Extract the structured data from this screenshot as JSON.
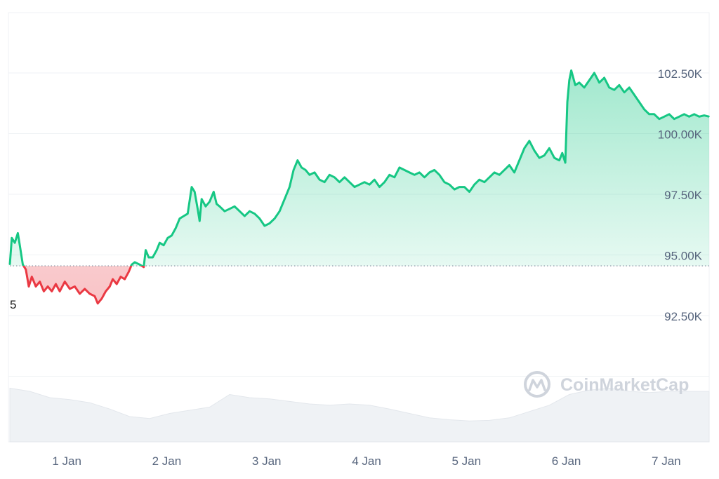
{
  "watermark": "CoinMarketCap",
  "colors": {
    "up": "#16c784",
    "down": "#ea3943",
    "up_fill": "#16c784",
    "down_fill": "#ea3943",
    "grid": "#eff2f5",
    "volume": "#eff2f5",
    "axis_text": "#58667e",
    "baseline": "#808a9d"
  },
  "chart_data": {
    "type": "area",
    "reference_label": "5",
    "baseline": 94.55,
    "ylim": [
      90.0,
      105.0
    ],
    "y_ticks": [
      {
        "value": 92.5,
        "label": "92.50K"
      },
      {
        "value": 95.0,
        "label": "95.00K"
      },
      {
        "value": 97.5,
        "label": "97.50K"
      },
      {
        "value": 100.0,
        "label": "100.00K"
      },
      {
        "value": 102.5,
        "label": "102.50K"
      }
    ],
    "x_ticks": [
      {
        "t": 0.5,
        "label": "1 Jan"
      },
      {
        "t": 1.5,
        "label": "2 Jan"
      },
      {
        "t": 2.5,
        "label": "3 Jan"
      },
      {
        "t": 3.5,
        "label": "4 Jan"
      },
      {
        "t": 4.5,
        "label": "5 Jan"
      },
      {
        "t": 5.5,
        "label": "6 Jan"
      },
      {
        "t": 6.5,
        "label": "7 Jan"
      }
    ],
    "x_range": [
      0,
      7.0
    ],
    "series": [
      {
        "values": [
          [
            0.0,
            94.6
          ],
          [
            0.02,
            95.7
          ],
          [
            0.05,
            95.5
          ],
          [
            0.08,
            95.9
          ],
          [
            0.1,
            95.4
          ],
          [
            0.13,
            94.6
          ],
          [
            0.16,
            94.4
          ],
          [
            0.19,
            93.7
          ],
          [
            0.22,
            94.1
          ],
          [
            0.26,
            93.7
          ],
          [
            0.3,
            93.9
          ],
          [
            0.34,
            93.5
          ],
          [
            0.38,
            93.7
          ],
          [
            0.42,
            93.5
          ],
          [
            0.46,
            93.8
          ],
          [
            0.5,
            93.5
          ],
          [
            0.55,
            93.9
          ],
          [
            0.6,
            93.6
          ],
          [
            0.65,
            93.7
          ],
          [
            0.7,
            93.4
          ],
          [
            0.75,
            93.6
          ],
          [
            0.8,
            93.4
          ],
          [
            0.85,
            93.3
          ],
          [
            0.88,
            93.0
          ],
          [
            0.92,
            93.2
          ],
          [
            0.96,
            93.5
          ],
          [
            1.0,
            93.7
          ],
          [
            1.03,
            94.0
          ],
          [
            1.07,
            93.8
          ],
          [
            1.11,
            94.1
          ],
          [
            1.15,
            94.0
          ],
          [
            1.19,
            94.3
          ],
          [
            1.22,
            94.6
          ],
          [
            1.25,
            94.7
          ],
          [
            1.3,
            94.6
          ],
          [
            1.34,
            94.5
          ],
          [
            1.36,
            95.2
          ],
          [
            1.39,
            94.9
          ],
          [
            1.43,
            94.9
          ],
          [
            1.47,
            95.2
          ],
          [
            1.5,
            95.5
          ],
          [
            1.54,
            95.4
          ],
          [
            1.58,
            95.7
          ],
          [
            1.62,
            95.8
          ],
          [
            1.66,
            96.1
          ],
          [
            1.7,
            96.5
          ],
          [
            1.74,
            96.6
          ],
          [
            1.78,
            96.7
          ],
          [
            1.82,
            97.8
          ],
          [
            1.85,
            97.6
          ],
          [
            1.88,
            96.9
          ],
          [
            1.9,
            96.4
          ],
          [
            1.92,
            97.3
          ],
          [
            1.96,
            97.0
          ],
          [
            2.0,
            97.2
          ],
          [
            2.04,
            97.6
          ],
          [
            2.07,
            97.1
          ],
          [
            2.1,
            97.0
          ],
          [
            2.15,
            96.8
          ],
          [
            2.2,
            96.9
          ],
          [
            2.25,
            97.0
          ],
          [
            2.3,
            96.8
          ],
          [
            2.35,
            96.6
          ],
          [
            2.4,
            96.8
          ],
          [
            2.45,
            96.7
          ],
          [
            2.5,
            96.5
          ],
          [
            2.55,
            96.2
          ],
          [
            2.6,
            96.3
          ],
          [
            2.65,
            96.5
          ],
          [
            2.7,
            96.8
          ],
          [
            2.75,
            97.3
          ],
          [
            2.8,
            97.8
          ],
          [
            2.84,
            98.5
          ],
          [
            2.88,
            98.9
          ],
          [
            2.92,
            98.6
          ],
          [
            2.96,
            98.5
          ],
          [
            3.0,
            98.3
          ],
          [
            3.05,
            98.4
          ],
          [
            3.1,
            98.1
          ],
          [
            3.15,
            98.0
          ],
          [
            3.2,
            98.3
          ],
          [
            3.25,
            98.2
          ],
          [
            3.3,
            98.0
          ],
          [
            3.35,
            98.2
          ],
          [
            3.4,
            98.0
          ],
          [
            3.45,
            97.8
          ],
          [
            3.5,
            97.9
          ],
          [
            3.55,
            98.0
          ],
          [
            3.6,
            97.9
          ],
          [
            3.65,
            98.1
          ],
          [
            3.7,
            97.8
          ],
          [
            3.75,
            98.0
          ],
          [
            3.8,
            98.3
          ],
          [
            3.85,
            98.2
          ],
          [
            3.9,
            98.6
          ],
          [
            3.95,
            98.5
          ],
          [
            4.0,
            98.4
          ],
          [
            4.05,
            98.3
          ],
          [
            4.1,
            98.4
          ],
          [
            4.15,
            98.2
          ],
          [
            4.2,
            98.4
          ],
          [
            4.25,
            98.5
          ],
          [
            4.3,
            98.3
          ],
          [
            4.35,
            98.0
          ],
          [
            4.4,
            97.9
          ],
          [
            4.45,
            97.7
          ],
          [
            4.5,
            97.8
          ],
          [
            4.55,
            97.8
          ],
          [
            4.6,
            97.6
          ],
          [
            4.65,
            97.9
          ],
          [
            4.7,
            98.1
          ],
          [
            4.75,
            98.0
          ],
          [
            4.8,
            98.2
          ],
          [
            4.85,
            98.4
          ],
          [
            4.9,
            98.3
          ],
          [
            4.95,
            98.5
          ],
          [
            5.0,
            98.7
          ],
          [
            5.05,
            98.4
          ],
          [
            5.1,
            98.9
          ],
          [
            5.15,
            99.4
          ],
          [
            5.2,
            99.7
          ],
          [
            5.25,
            99.3
          ],
          [
            5.3,
            99.0
          ],
          [
            5.35,
            99.1
          ],
          [
            5.4,
            99.4
          ],
          [
            5.45,
            99.0
          ],
          [
            5.5,
            98.9
          ],
          [
            5.53,
            99.2
          ],
          [
            5.56,
            98.8
          ],
          [
            5.58,
            101.3
          ],
          [
            5.6,
            102.2
          ],
          [
            5.62,
            102.6
          ],
          [
            5.66,
            102.0
          ],
          [
            5.7,
            102.1
          ],
          [
            5.75,
            101.9
          ],
          [
            5.8,
            102.2
          ],
          [
            5.85,
            102.5
          ],
          [
            5.9,
            102.1
          ],
          [
            5.95,
            102.3
          ],
          [
            6.0,
            101.9
          ],
          [
            6.05,
            101.8
          ],
          [
            6.1,
            102.0
          ],
          [
            6.15,
            101.7
          ],
          [
            6.2,
            101.9
          ],
          [
            6.25,
            101.6
          ],
          [
            6.3,
            101.3
          ],
          [
            6.35,
            101.0
          ],
          [
            6.4,
            100.8
          ],
          [
            6.45,
            100.8
          ],
          [
            6.5,
            100.6
          ],
          [
            6.55,
            100.7
          ],
          [
            6.6,
            100.8
          ],
          [
            6.65,
            100.6
          ],
          [
            6.7,
            100.7
          ],
          [
            6.75,
            100.8
          ],
          [
            6.8,
            100.7
          ],
          [
            6.85,
            100.8
          ],
          [
            6.9,
            100.7
          ],
          [
            6.95,
            100.75
          ],
          [
            7.0,
            100.7
          ]
        ]
      }
    ],
    "volume": [
      [
        0.0,
        0.85
      ],
      [
        0.2,
        0.8
      ],
      [
        0.4,
        0.7
      ],
      [
        0.6,
        0.67
      ],
      [
        0.8,
        0.62
      ],
      [
        1.0,
        0.52
      ],
      [
        1.2,
        0.4
      ],
      [
        1.4,
        0.37
      ],
      [
        1.6,
        0.45
      ],
      [
        1.8,
        0.5
      ],
      [
        2.0,
        0.55
      ],
      [
        2.2,
        0.75
      ],
      [
        2.4,
        0.7
      ],
      [
        2.6,
        0.68
      ],
      [
        2.8,
        0.64
      ],
      [
        3.0,
        0.6
      ],
      [
        3.2,
        0.58
      ],
      [
        3.4,
        0.6
      ],
      [
        3.6,
        0.58
      ],
      [
        3.8,
        0.52
      ],
      [
        4.0,
        0.45
      ],
      [
        4.2,
        0.38
      ],
      [
        4.4,
        0.35
      ],
      [
        4.6,
        0.33
      ],
      [
        4.8,
        0.34
      ],
      [
        5.0,
        0.38
      ],
      [
        5.2,
        0.48
      ],
      [
        5.4,
        0.58
      ],
      [
        5.6,
        0.75
      ],
      [
        5.8,
        0.82
      ],
      [
        6.0,
        0.85
      ],
      [
        6.2,
        0.8
      ],
      [
        6.4,
        0.78
      ],
      [
        6.6,
        0.8
      ],
      [
        7.0,
        0.8
      ]
    ]
  }
}
